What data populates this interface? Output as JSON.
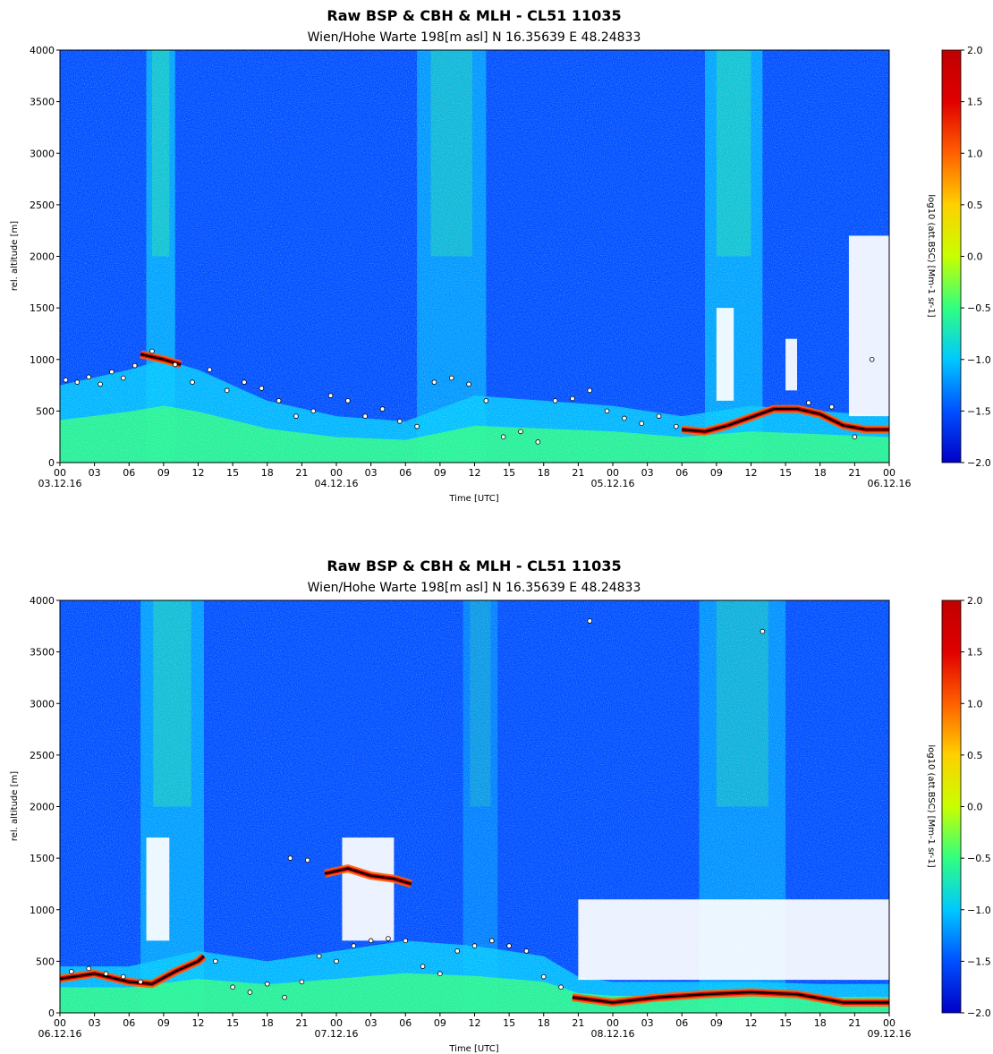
{
  "chart_data": [
    {
      "type": "heatmap",
      "title": "Raw BSP & CBH & MLH - CL51 11035",
      "subtitle": "Wien/Hohe Warte   198[m asl]    N 16.35639  E 48.24833",
      "xlabel": "Time [UTC]",
      "ylabel": "rel. altitude [m]",
      "xlim_hours": [
        0,
        72
      ],
      "ylim": [
        0,
        4000
      ],
      "x_tick_labels": [
        "00",
        "03",
        "06",
        "09",
        "12",
        "15",
        "18",
        "21",
        "00",
        "03",
        "06",
        "09",
        "12",
        "15",
        "18",
        "21",
        "00",
        "03",
        "06",
        "09",
        "12",
        "15",
        "18",
        "21",
        "00"
      ],
      "date_labels": [
        "03.12.16",
        "04.12.16",
        "05.12.16",
        "06.12.16"
      ],
      "y_ticks": [
        0,
        500,
        1000,
        1500,
        2000,
        2500,
        3000,
        3500,
        4000
      ],
      "colorbar": {
        "label": "log10 (att.BSC) [Mm-1 sr-1]",
        "range": [
          -2.0,
          2.0
        ],
        "ticks": [
          "2.0",
          "1.5",
          "1.0",
          "0.5",
          "0.0",
          "−0.5",
          "−1.0",
          "−1.5",
          "−2.0"
        ],
        "colors": [
          "#0000c8",
          "#0050ff",
          "#00c8ff",
          "#30ff80",
          "#c8ff00",
          "#ffd000",
          "#ff6000",
          "#e00000",
          "#c00000"
        ]
      },
      "boundary_layer_top": [
        {
          "t": 0,
          "h": 750
        },
        {
          "t": 6,
          "h": 900
        },
        {
          "t": 9,
          "h": 1000
        },
        {
          "t": 12,
          "h": 900
        },
        {
          "t": 18,
          "h": 600
        },
        {
          "t": 24,
          "h": 450
        },
        {
          "t": 30,
          "h": 400
        },
        {
          "t": 36,
          "h": 650
        },
        {
          "t": 42,
          "h": 600
        },
        {
          "t": 48,
          "h": 550
        },
        {
          "t": 54,
          "h": 450
        },
        {
          "t": 60,
          "h": 550
        },
        {
          "t": 66,
          "h": 500
        },
        {
          "t": 72,
          "h": 450
        }
      ],
      "mlh_line": [
        {
          "t": 7,
          "h": 1050
        },
        {
          "t": 9,
          "h": 1000
        },
        {
          "t": 10.5,
          "h": 950
        },
        {
          "t": 54,
          "h": 320
        },
        {
          "t": 56,
          "h": 300
        },
        {
          "t": 58,
          "h": 360
        },
        {
          "t": 60,
          "h": 440
        },
        {
          "t": 62,
          "h": 520
        },
        {
          "t": 64,
          "h": 520
        },
        {
          "t": 66,
          "h": 470
        },
        {
          "t": 68,
          "h": 360
        },
        {
          "t": 70,
          "h": 320
        },
        {
          "t": 72,
          "h": 320
        }
      ],
      "cbh_points": [
        {
          "t": 0.5,
          "h": 800
        },
        {
          "t": 1.5,
          "h": 780
        },
        {
          "t": 2.5,
          "h": 830
        },
        {
          "t": 3.5,
          "h": 760
        },
        {
          "t": 4.5,
          "h": 880
        },
        {
          "t": 5.5,
          "h": 820
        },
        {
          "t": 6.5,
          "h": 940
        },
        {
          "t": 8,
          "h": 1080
        },
        {
          "t": 10,
          "h": 950
        },
        {
          "t": 11.5,
          "h": 780
        },
        {
          "t": 13,
          "h": 900
        },
        {
          "t": 14.5,
          "h": 700
        },
        {
          "t": 16,
          "h": 780
        },
        {
          "t": 17.5,
          "h": 720
        },
        {
          "t": 19,
          "h": 600
        },
        {
          "t": 20.5,
          "h": 450
        },
        {
          "t": 22,
          "h": 500
        },
        {
          "t": 23.5,
          "h": 650
        },
        {
          "t": 25,
          "h": 600
        },
        {
          "t": 26.5,
          "h": 450
        },
        {
          "t": 28,
          "h": 520
        },
        {
          "t": 29.5,
          "h": 400
        },
        {
          "t": 31,
          "h": 350
        },
        {
          "t": 32.5,
          "h": 780
        },
        {
          "t": 34,
          "h": 820
        },
        {
          "t": 35.5,
          "h": 760
        },
        {
          "t": 37,
          "h": 600
        },
        {
          "t": 38.5,
          "h": 250
        },
        {
          "t": 40,
          "h": 300
        },
        {
          "t": 41.5,
          "h": 200
        },
        {
          "t": 43,
          "h": 600
        },
        {
          "t": 44.5,
          "h": 620
        },
        {
          "t": 46,
          "h": 700
        },
        {
          "t": 47.5,
          "h": 500
        },
        {
          "t": 49,
          "h": 430
        },
        {
          "t": 50.5,
          "h": 380
        },
        {
          "t": 52,
          "h": 450
        },
        {
          "t": 53.5,
          "h": 350
        },
        {
          "t": 65,
          "h": 580
        },
        {
          "t": 67,
          "h": 540
        },
        {
          "t": 69,
          "h": 250
        },
        {
          "t": 70.5,
          "h": 1000
        }
      ],
      "aerosol_columns": [
        {
          "t0": 7.5,
          "t1": 10,
          "strength": 0.7
        },
        {
          "t0": 31,
          "t1": 37,
          "strength": 0.6
        },
        {
          "t0": 56,
          "t1": 61,
          "strength": 0.7
        }
      ],
      "clear_gaps": [
        {
          "t0": 68.5,
          "t1": 72,
          "h0": 450,
          "h1": 2200
        },
        {
          "t0": 57,
          "t1": 58.5,
          "h0": 600,
          "h1": 1500
        },
        {
          "t0": 63,
          "t1": 64,
          "h0": 700,
          "h1": 1200
        }
      ]
    },
    {
      "type": "heatmap",
      "title": "Raw BSP & CBH & MLH - CL51 11035",
      "subtitle": "Wien/Hohe Warte   198[m asl]    N 16.35639  E 48.24833",
      "xlabel": "Time [UTC]",
      "ylabel": "rel. altitude [m]",
      "xlim_hours": [
        0,
        72
      ],
      "ylim": [
        0,
        4000
      ],
      "x_tick_labels": [
        "00",
        "03",
        "06",
        "09",
        "12",
        "15",
        "18",
        "21",
        "00",
        "03",
        "06",
        "09",
        "12",
        "15",
        "18",
        "21",
        "00",
        "03",
        "06",
        "09",
        "12",
        "15",
        "18",
        "21",
        "00"
      ],
      "date_labels": [
        "06.12.16",
        "07.12.16",
        "08.12.16",
        "09.12.16"
      ],
      "y_ticks": [
        0,
        500,
        1000,
        1500,
        2000,
        2500,
        3000,
        3500,
        4000
      ],
      "colorbar": {
        "label": "log10 (att.BSC) [Mm-1 sr-1]",
        "range": [
          -2.0,
          2.0
        ],
        "ticks": [
          "2.0",
          "1.5",
          "1.0",
          "0.5",
          "0.0",
          "−0.5",
          "−1.0",
          "−1.5",
          "−2.0"
        ],
        "colors": [
          "#0000c8",
          "#0050ff",
          "#00c8ff",
          "#30ff80",
          "#c8ff00",
          "#ffd000",
          "#ff6000",
          "#e00000",
          "#c00000"
        ]
      },
      "boundary_layer_top": [
        {
          "t": 0,
          "h": 450
        },
        {
          "t": 6,
          "h": 450
        },
        {
          "t": 12,
          "h": 600
        },
        {
          "t": 18,
          "h": 500
        },
        {
          "t": 24,
          "h": 600
        },
        {
          "t": 30,
          "h": 700
        },
        {
          "t": 36,
          "h": 650
        },
        {
          "t": 42,
          "h": 550
        },
        {
          "t": 45,
          "h": 350
        },
        {
          "t": 48,
          "h": 300
        },
        {
          "t": 54,
          "h": 300
        },
        {
          "t": 60,
          "h": 300
        },
        {
          "t": 66,
          "h": 280
        },
        {
          "t": 72,
          "h": 280
        }
      ],
      "mlh_line": [
        {
          "t": 0,
          "h": 330
        },
        {
          "t": 3,
          "h": 380
        },
        {
          "t": 6,
          "h": 300
        },
        {
          "t": 8,
          "h": 280
        },
        {
          "t": 10,
          "h": 400
        },
        {
          "t": 12,
          "h": 500
        },
        {
          "t": 12.5,
          "h": 550
        },
        {
          "t": 23,
          "h": 1350
        },
        {
          "t": 25,
          "h": 1400
        },
        {
          "t": 27,
          "h": 1330
        },
        {
          "t": 29,
          "h": 1300
        },
        {
          "t": 30.5,
          "h": 1250
        },
        {
          "t": 44.5,
          "h": 150
        },
        {
          "t": 48,
          "h": 100
        },
        {
          "t": 52,
          "h": 150
        },
        {
          "t": 56,
          "h": 180
        },
        {
          "t": 60,
          "h": 200
        },
        {
          "t": 64,
          "h": 180
        },
        {
          "t": 68,
          "h": 100
        },
        {
          "t": 72,
          "h": 100
        }
      ],
      "cbh_points": [
        {
          "t": 1,
          "h": 400
        },
        {
          "t": 2.5,
          "h": 430
        },
        {
          "t": 4,
          "h": 380
        },
        {
          "t": 5.5,
          "h": 350
        },
        {
          "t": 7,
          "h": 300
        },
        {
          "t": 13.5,
          "h": 500
        },
        {
          "t": 15,
          "h": 250
        },
        {
          "t": 16.5,
          "h": 200
        },
        {
          "t": 18,
          "h": 280
        },
        {
          "t": 19.5,
          "h": 150
        },
        {
          "t": 21,
          "h": 300
        },
        {
          "t": 22.5,
          "h": 550
        },
        {
          "t": 24,
          "h": 500
        },
        {
          "t": 25.5,
          "h": 650
        },
        {
          "t": 27,
          "h": 700
        },
        {
          "t": 28.5,
          "h": 720
        },
        {
          "t": 30,
          "h": 700
        },
        {
          "t": 31.5,
          "h": 450
        },
        {
          "t": 33,
          "h": 380
        },
        {
          "t": 34.5,
          "h": 600
        },
        {
          "t": 36,
          "h": 650
        },
        {
          "t": 37.5,
          "h": 700
        },
        {
          "t": 39,
          "h": 650
        },
        {
          "t": 40.5,
          "h": 600
        },
        {
          "t": 42,
          "h": 350
        },
        {
          "t": 43.5,
          "h": 250
        },
        {
          "t": 20,
          "h": 1500
        },
        {
          "t": 21.5,
          "h": 1480
        },
        {
          "t": 46,
          "h": 3800
        },
        {
          "t": 61,
          "h": 3700
        }
      ],
      "aerosol_columns": [
        {
          "t0": 7,
          "t1": 12.5,
          "strength": 0.65
        },
        {
          "t0": 35,
          "t1": 38,
          "strength": 0.4
        },
        {
          "t0": 55.5,
          "t1": 63,
          "strength": 0.55
        }
      ],
      "clear_gaps": [
        {
          "t0": 45,
          "t1": 72,
          "h0": 320,
          "h1": 1100
        },
        {
          "t0": 7.5,
          "t1": 9.5,
          "h0": 700,
          "h1": 1700
        },
        {
          "t0": 24.5,
          "t1": 29,
          "h0": 700,
          "h1": 1700
        }
      ]
    }
  ]
}
